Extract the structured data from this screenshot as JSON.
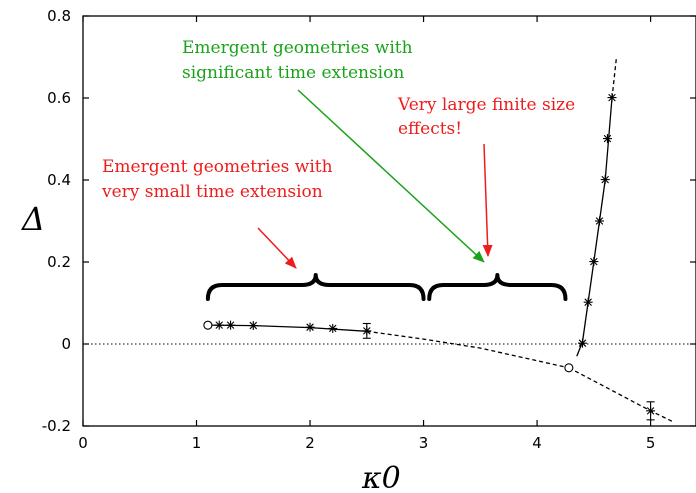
{
  "chart_data": {
    "type": "scatter",
    "xlabel": "κ0",
    "ylabel": "Δ",
    "xlim": [
      0,
      5.4
    ],
    "ylim": [
      -0.2,
      0.8
    ],
    "x_ticks": [
      "0",
      "1",
      "2",
      "3",
      "4",
      "5"
    ],
    "y_ticks": [
      "-0.2",
      "0",
      "0.2",
      "0.4",
      "0.6",
      "0.8"
    ],
    "zero_line": true,
    "series": [
      {
        "style": "star-points-solid-fit-left",
        "points": [
          {
            "x": 1.2,
            "y": 0.046
          },
          {
            "x": 1.3,
            "y": 0.046
          },
          {
            "x": 1.5,
            "y": 0.045
          },
          {
            "x": 2.0,
            "y": 0.041
          },
          {
            "x": 2.2,
            "y": 0.038
          },
          {
            "x": 2.5,
            "y": 0.032,
            "err": 0.018
          }
        ]
      },
      {
        "style": "star-points-solid-fit-right",
        "points": [
          {
            "x": 4.4,
            "y": 0.002
          },
          {
            "x": 4.45,
            "y": 0.102
          },
          {
            "x": 4.5,
            "y": 0.201
          },
          {
            "x": 4.55,
            "y": 0.3
          },
          {
            "x": 4.6,
            "y": 0.401
          },
          {
            "x": 4.62,
            "y": 0.501
          },
          {
            "x": 4.66,
            "y": 0.601
          },
          {
            "x": 5.0,
            "y": -0.163,
            "err": 0.022
          }
        ]
      },
      {
        "style": "open-circles",
        "points": [
          {
            "x": 1.1,
            "y": 0.046
          },
          {
            "x": 4.28,
            "y": -0.058
          }
        ]
      }
    ],
    "fit_curves": {
      "left_solid": [
        [
          1.1,
          0.046
        ],
        [
          1.5,
          0.045
        ],
        [
          2.0,
          0.04
        ],
        [
          2.5,
          0.031
        ]
      ],
      "left_dashed": [
        [
          2.5,
          0.031
        ],
        [
          3.0,
          0.012
        ],
        [
          3.5,
          -0.01
        ],
        [
          4.28,
          -0.058
        ]
      ],
      "right_solid": [
        [
          4.35,
          -0.03
        ],
        [
          4.4,
          0.005
        ],
        [
          4.5,
          0.2
        ],
        [
          4.6,
          0.4
        ],
        [
          4.66,
          0.6
        ]
      ],
      "right_dashed_top": [
        [
          4.66,
          0.6
        ],
        [
          4.7,
          0.7
        ]
      ],
      "right_dashed_bottom": [
        [
          4.28,
          -0.058
        ],
        [
          5.0,
          -0.163
        ],
        [
          5.2,
          -0.19
        ]
      ]
    },
    "annotations": [
      {
        "lines": [
          "Emergent geometries with",
          "significant time extension"
        ],
        "color": "#1aa31a"
      },
      {
        "lines": [
          "Very large finite size",
          "effects!"
        ],
        "color": "#ee1c1c"
      },
      {
        "lines": [
          "Emergent geometries with",
          "very small time extension"
        ],
        "color": "#ee1c1c"
      }
    ],
    "braces": [
      {
        "from": 1.1,
        "to": 3.0
      },
      {
        "from": 3.05,
        "to": 4.25
      }
    ]
  }
}
